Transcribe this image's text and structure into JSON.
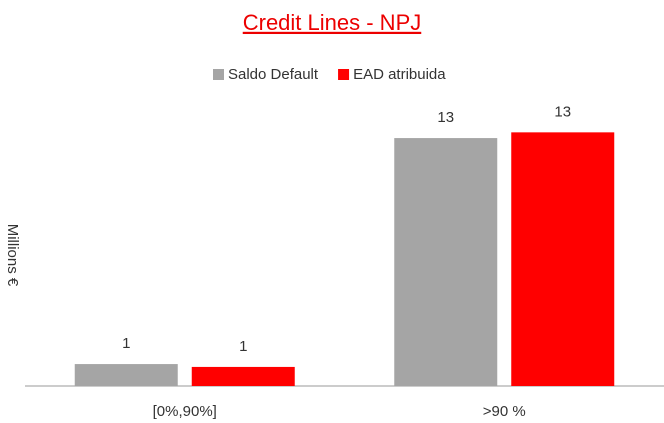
{
  "chart_data": {
    "type": "bar",
    "title": "Credit Lines - NPJ",
    "y_label": "Millions €",
    "categories": [
      "[0%,90%]",
      ">90 %"
    ],
    "series": [
      {
        "name": "Saldo Default",
        "color": "#a5a5a5",
        "values": [
          1.15,
          13.0
        ],
        "value_labels": [
          "1",
          "13"
        ]
      },
      {
        "name": "EAD atribuida",
        "color": "#ff0000",
        "values": [
          1.0,
          13.3
        ],
        "value_labels": [
          "1",
          "13"
        ]
      }
    ],
    "ylim": [
      0,
      14
    ],
    "legend": "top"
  }
}
